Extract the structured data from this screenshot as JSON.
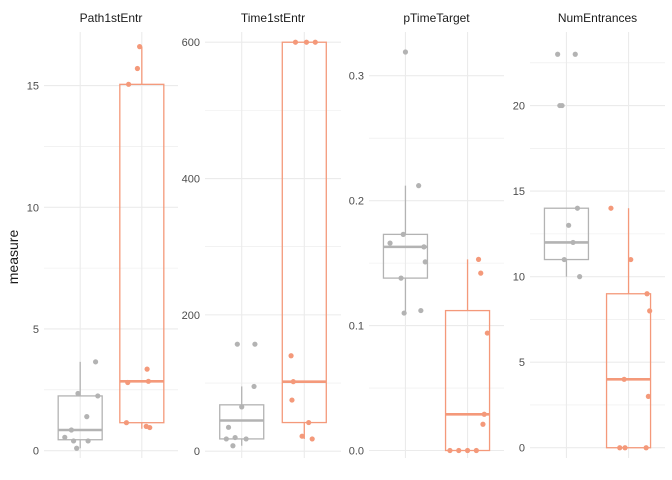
{
  "chart_data": {
    "type": "boxplot",
    "ylabel": "measure",
    "xlabel": "",
    "colors": {
      "group_a": "#b3b3b3",
      "group_b": "#f4997a",
      "grid": "#ebebeb"
    },
    "panels": [
      {
        "title": "Path1stEntr",
        "ylim": [
          -0.3,
          17.2
        ],
        "yticks": [
          0,
          5,
          10,
          15
        ],
        "boxes": [
          {
            "q1": 0.45,
            "median": 0.85,
            "q3": 2.25,
            "whisker_low": 0.1,
            "whisker_high": 3.65,
            "points": [
              [
                -0.35,
                0.55
              ],
              [
                -0.2,
                0.85
              ],
              [
                -0.15,
                0.4
              ],
              [
                -0.08,
                0.1
              ],
              [
                -0.05,
                2.35
              ],
              [
                0.15,
                1.4
              ],
              [
                0.18,
                0.4
              ],
              [
                0.35,
                3.65
              ],
              [
                0.4,
                2.25
              ]
            ]
          },
          {
            "q1": 1.15,
            "median": 2.85,
            "q3": 15.05,
            "whisker_low": 0.9,
            "whisker_high": 16.6,
            "points": [
              [
                -0.35,
                1.15
              ],
              [
                -0.32,
                2.8
              ],
              [
                -0.3,
                15.05
              ],
              [
                -0.1,
                15.7
              ],
              [
                -0.05,
                16.6
              ],
              [
                0.1,
                1.0
              ],
              [
                0.12,
                3.35
              ],
              [
                0.15,
                2.85
              ],
              [
                0.18,
                0.95
              ]
            ]
          }
        ]
      },
      {
        "title": "Time1stEntr",
        "ylim": [
          -10,
          615
        ],
        "yticks": [
          0,
          200,
          400,
          600
        ],
        "boxes": [
          {
            "q1": 18,
            "median": 45,
            "q3": 68,
            "whisker_low": 8,
            "whisker_high": 95,
            "points": [
              [
                -0.35,
                18
              ],
              [
                -0.3,
                35
              ],
              [
                -0.2,
                8
              ],
              [
                -0.15,
                20
              ],
              [
                -0.1,
                157
              ],
              [
                0.0,
                65
              ],
              [
                0.1,
                18
              ],
              [
                0.28,
                95
              ],
              [
                0.3,
                157
              ]
            ]
          },
          {
            "q1": 42,
            "median": 102,
            "q3": 600,
            "whisker_low": 18,
            "whisker_high": 600,
            "points": [
              [
                -0.3,
                140
              ],
              [
                -0.28,
                75
              ],
              [
                -0.25,
                102
              ],
              [
                -0.2,
                600
              ],
              [
                -0.05,
                22
              ],
              [
                0.05,
                600
              ],
              [
                0.1,
                42
              ],
              [
                0.18,
                18
              ],
              [
                0.25,
                600
              ]
            ]
          }
        ]
      },
      {
        "title": "pTimeTarget",
        "ylim": [
          -0.006,
          0.335
        ],
        "yticks": [
          0.0,
          0.1,
          0.2,
          0.3
        ],
        "ytick_labels": [
          "0.0",
          "0.1",
          "0.2",
          "0.3"
        ],
        "boxes": [
          {
            "q1": 0.138,
            "median": 0.163,
            "q3": 0.173,
            "whisker_low": 0.11,
            "whisker_high": 0.212,
            "points": [
              [
                -0.35,
                0.166
              ],
              [
                -0.1,
                0.138
              ],
              [
                -0.05,
                0.173
              ],
              [
                -0.03,
                0.11
              ],
              [
                0.0,
                0.319
              ],
              [
                0.3,
                0.212
              ],
              [
                0.35,
                0.112
              ],
              [
                0.42,
                0.163
              ],
              [
                0.45,
                0.151
              ]
            ]
          },
          {
            "q1": 0.0,
            "median": 0.029,
            "q3": 0.112,
            "whisker_low": 0.0,
            "whisker_high": 0.153,
            "points": [
              [
                -0.4,
                0.0
              ],
              [
                -0.2,
                0.0
              ],
              [
                0.0,
                0.0
              ],
              [
                0.2,
                0.0
              ],
              [
                0.25,
                0.153
              ],
              [
                0.3,
                0.142
              ],
              [
                0.35,
                0.021
              ],
              [
                0.38,
                0.029
              ],
              [
                0.45,
                0.094
              ]
            ]
          }
        ]
      },
      {
        "title": "NumEntrances",
        "ylim": [
          -0.6,
          24.3
        ],
        "yticks": [
          0,
          5,
          10,
          15,
          20
        ],
        "boxes": [
          {
            "q1": 11,
            "median": 12,
            "q3": 14,
            "whisker_low": 10,
            "whisker_high": 14,
            "points": [
              [
                -0.2,
                23
              ],
              [
                -0.15,
                20
              ],
              [
                -0.1,
                20
              ],
              [
                -0.05,
                11
              ],
              [
                0.05,
                13
              ],
              [
                0.15,
                12
              ],
              [
                0.2,
                23
              ],
              [
                0.25,
                14
              ],
              [
                0.3,
                10
              ]
            ]
          },
          {
            "q1": 0,
            "median": 4,
            "q3": 9,
            "whisker_low": 0,
            "whisker_high": 14,
            "points": [
              [
                -0.4,
                14
              ],
              [
                -0.2,
                0
              ],
              [
                -0.1,
                4
              ],
              [
                -0.08,
                0
              ],
              [
                0.05,
                11
              ],
              [
                0.4,
                0
              ],
              [
                0.42,
                9
              ],
              [
                0.45,
                3
              ],
              [
                0.48,
                8
              ]
            ]
          }
        ]
      }
    ]
  }
}
